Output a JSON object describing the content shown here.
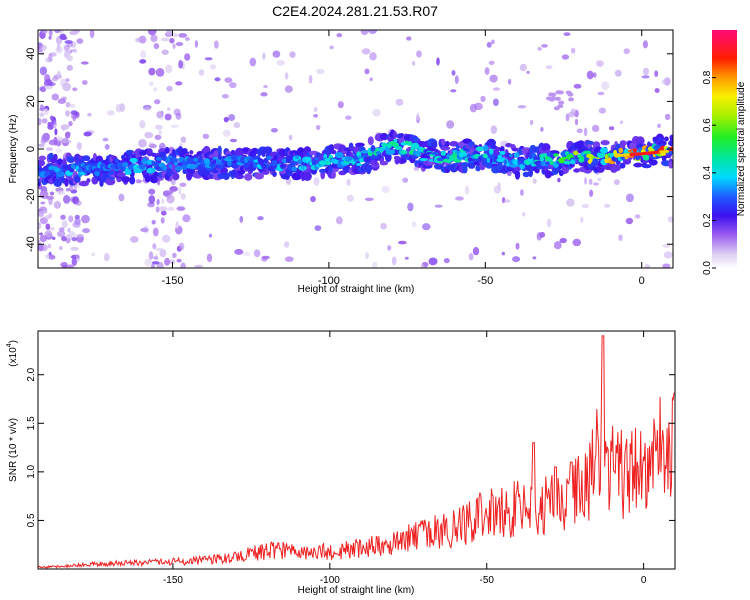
{
  "figure": {
    "title": "C2E4.2024.281.21.53.R07"
  },
  "chart_data": [
    {
      "type": "heatmap",
      "title": "C2E4.2024.281.21.53.R07",
      "xlabel": "Height of straight line (km)",
      "ylabel": "Frequency (Hz)",
      "xlim": [
        -193,
        10
      ],
      "ylim": [
        -50,
        50
      ],
      "x_ticks": [
        -150,
        -100,
        -50,
        0
      ],
      "y_ticks": [
        -40,
        -20,
        0,
        20,
        40
      ],
      "colorbar": {
        "label": "Normalized spectral amplitude",
        "range": [
          0.0,
          1.0
        ],
        "ticks": [
          0.0,
          0.2,
          0.4,
          0.6,
          0.8
        ],
        "colormap": "rainbow (white-lavender-violet-blue-cyan-green-yellow-orange-red-magenta)"
      },
      "ridge": {
        "description": "Main spectral ridge (peak frequency vs height)",
        "x": [
          -190,
          -180,
          -170,
          -160,
          -150,
          -140,
          -130,
          -120,
          -110,
          -100,
          -90,
          -80,
          -75,
          -70,
          -60,
          -50,
          -40,
          -30,
          -20,
          -10,
          0,
          8
        ],
        "frequency": [
          -9,
          -9,
          -8,
          -7,
          -6,
          -6,
          -6,
          -6,
          -6,
          -5,
          -4,
          1,
          1,
          -3,
          -3,
          -2,
          -5,
          -5,
          -3,
          -3,
          -2,
          -1
        ],
        "peak_amplitude": [
          0.35,
          0.4,
          0.35,
          0.4,
          0.35,
          0.35,
          0.35,
          0.4,
          0.4,
          0.45,
          0.45,
          0.5,
          0.5,
          0.45,
          0.5,
          0.45,
          0.4,
          0.5,
          0.75,
          0.8,
          0.95,
          0.9
        ]
      }
    },
    {
      "type": "line",
      "xlabel": "Height of straight line (km)",
      "ylabel": "SNR (10 * v/v)",
      "scale_label": "(x10",
      "scale_exp": "4",
      "scale_close": ")",
      "xlim": [
        -193,
        10
      ],
      "ylim": [
        0,
        2.45
      ],
      "x_ticks": [
        -150,
        -100,
        -50,
        0
      ],
      "y_ticks": [
        0.5,
        1.0,
        1.5,
        2.0
      ],
      "x_tick_labels": [
        "-150",
        "-100",
        "-50",
        "0"
      ],
      "y_tick_labels": [
        "0.5",
        "1.0",
        "1.5",
        "2.0"
      ],
      "line_color": "#ee2222",
      "series": [
        {
          "x": [
            -193,
            -185,
            -175,
            -165,
            -155,
            -145,
            -135,
            -125,
            -118,
            -110,
            -100,
            -90,
            -80,
            -70,
            -60,
            -55,
            -50,
            -45,
            -40,
            -35,
            -30,
            -25,
            -20,
            -17,
            -14,
            -12,
            -10,
            -8,
            -5,
            -2,
            0,
            3,
            5,
            7,
            10
          ],
          "values": [
            0.02,
            0.03,
            0.06,
            0.07,
            0.08,
            0.09,
            0.12,
            0.18,
            0.22,
            0.22,
            0.2,
            0.25,
            0.32,
            0.4,
            0.48,
            0.55,
            0.65,
            0.7,
            0.72,
            0.68,
            0.75,
            0.8,
            0.95,
            1.1,
            1.4,
            1.05,
            1.2,
            1.1,
            1.15,
            1.25,
            1.2,
            1.3,
            1.35,
            1.5,
            1.75
          ],
          "peaks": [
            {
              "x": -13,
              "value": 2.4
            },
            {
              "x": -35,
              "value": 1.3
            },
            {
              "x": -23,
              "value": 1.1
            },
            {
              "x": -28,
              "value": 1.05
            }
          ]
        }
      ]
    }
  ],
  "y_tick_labels_top": [
    "-40",
    "-20",
    "0",
    "20",
    "40"
  ],
  "x_tick_labels_top": [
    "-150",
    "-100",
    "-50",
    "0"
  ],
  "colorbar_tick_labels": [
    "0.0",
    "0.2",
    "0.4",
    "0.6",
    "0.8"
  ]
}
